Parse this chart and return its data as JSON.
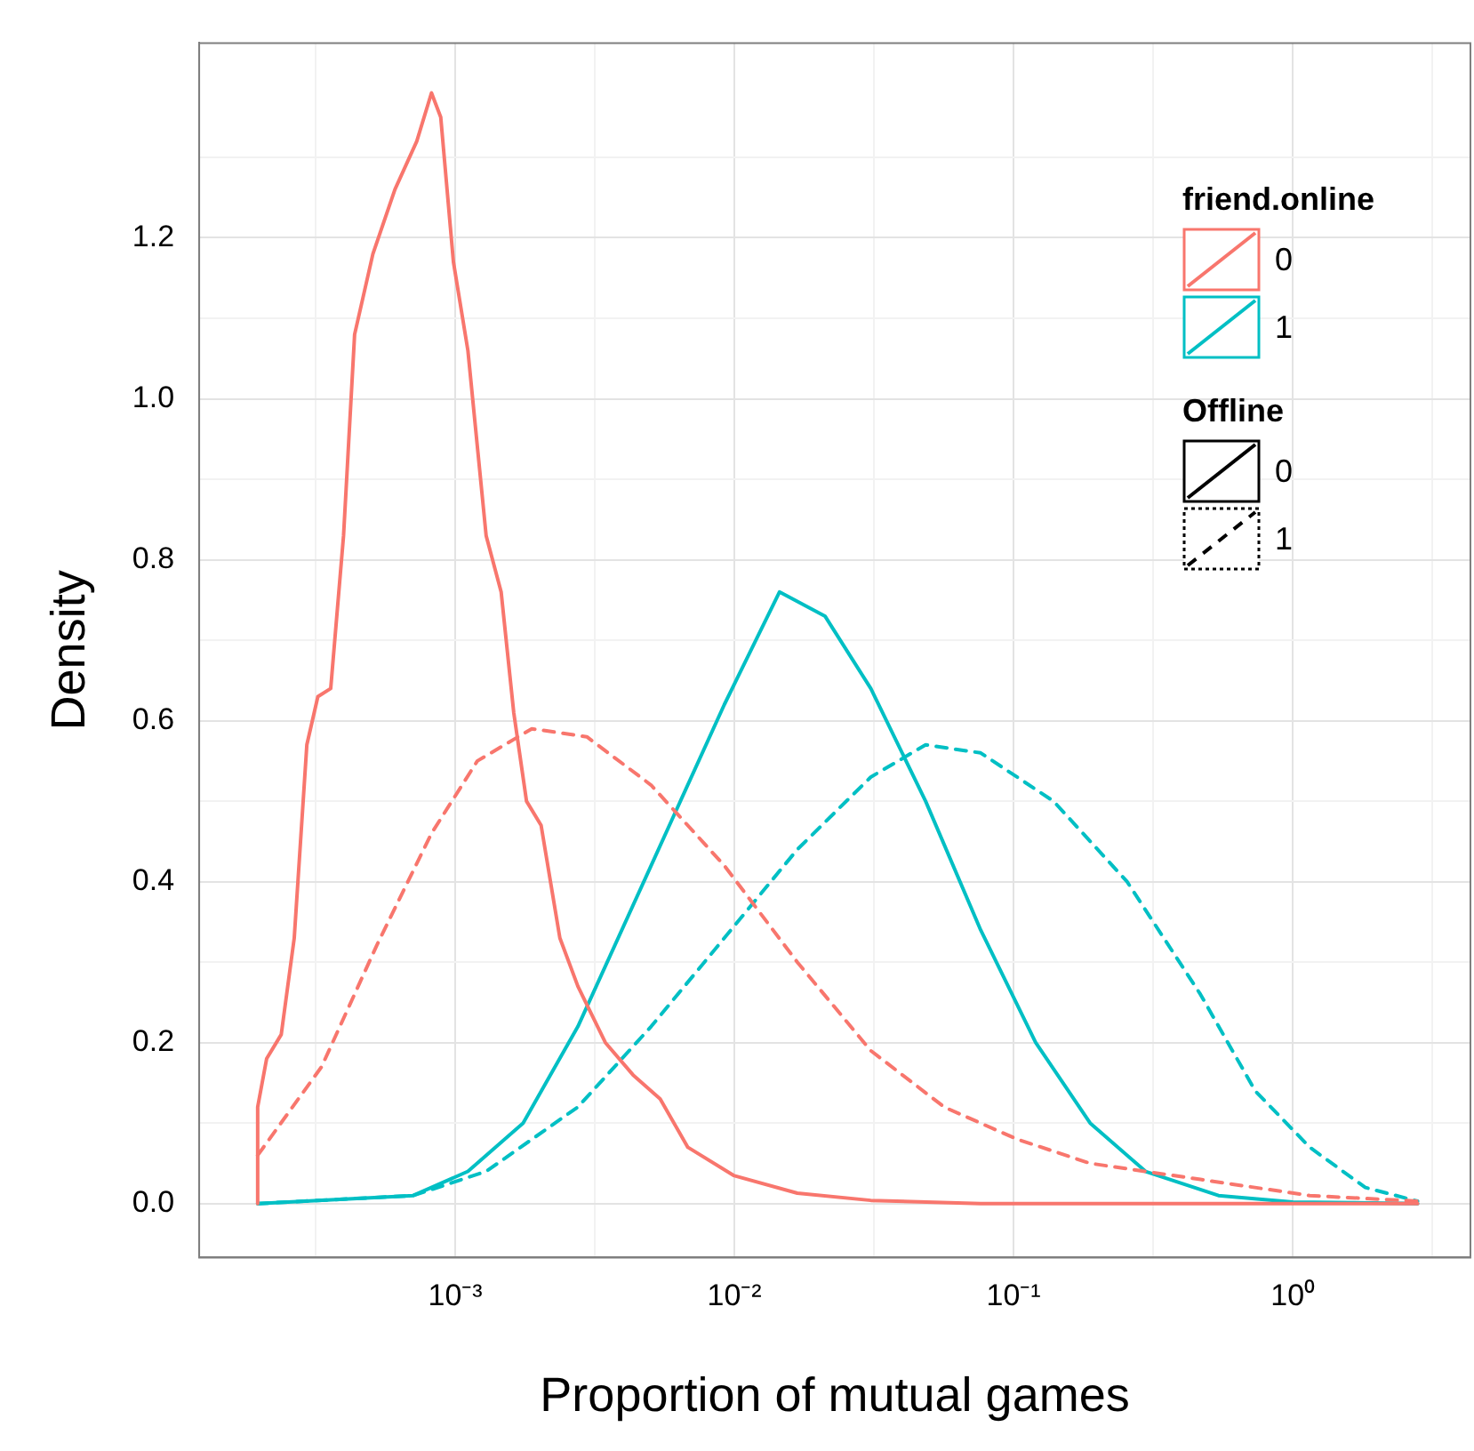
{
  "chart_data": {
    "type": "line",
    "xlabel": "Proportion of mutual games",
    "ylabel": "Density",
    "log": "x",
    "grid": true,
    "legend_title": "friend.online",
    "annotations": [
      "0",
      "1",
      "Offline",
      "0",
      "1"
    ],
    "xlim": [
      0.000121,
      4.33
    ],
    "ylim": [
      -0.067,
      1.442
    ],
    "xticks": [
      {
        "value": 0.000316,
        "label": null
      },
      {
        "value": 0.001,
        "label": "10⁻³"
      },
      {
        "value": 0.00316,
        "label": null
      },
      {
        "value": 0.01,
        "label": "10⁻²"
      },
      {
        "value": 0.0316,
        "label": null
      },
      {
        "value": 0.1,
        "label": "10⁻¹"
      },
      {
        "value": 0.316,
        "label": null
      },
      {
        "value": 1,
        "label": "10⁰"
      },
      {
        "value": 3.16,
        "label": null
      }
    ],
    "yticks": [
      {
        "value": 0,
        "label": "0.0"
      },
      {
        "value": 0.1,
        "label": null
      },
      {
        "value": 0.2,
        "label": "0.2"
      },
      {
        "value": 0.3,
        "label": null
      },
      {
        "value": 0.4,
        "label": "0.4"
      },
      {
        "value": 0.5,
        "label": null
      },
      {
        "value": 0.6,
        "label": "0.6"
      },
      {
        "value": 0.7,
        "label": null
      },
      {
        "value": 0.8,
        "label": "0.8"
      },
      {
        "value": 0.9,
        "label": null
      },
      {
        "value": 1.0,
        "label": "1.0"
      },
      {
        "value": 1.1,
        "label": null
      },
      {
        "value": 1.2,
        "label": "1.2"
      },
      {
        "value": 1.3,
        "label": null
      }
    ],
    "series": [
      {
        "color": "#f8766d",
        "line_style": "solid",
        "x": [
          0.000196,
          0.000196,
          0.000211,
          0.000238,
          0.000265,
          0.000294,
          0.000322,
          0.000358,
          0.000398,
          0.000436,
          0.000507,
          0.000608,
          0.000728,
          0.000822,
          0.000887,
          0.000985,
          0.00111,
          0.00129,
          0.00146,
          0.00162,
          0.0018,
          0.00203,
          0.00237,
          0.00275,
          0.00345,
          0.00433,
          0.00542,
          0.00681,
          0.00993,
          0.0168,
          0.0308,
          0.0762,
          2.8
        ],
        "values": [
          0,
          0.12,
          0.18,
          0.21,
          0.33,
          0.57,
          0.63,
          0.64,
          0.83,
          1.08,
          1.18,
          1.26,
          1.32,
          1.38,
          1.35,
          1.17,
          1.06,
          0.83,
          0.76,
          0.61,
          0.5,
          0.47,
          0.33,
          0.27,
          0.2,
          0.16,
          0.13,
          0.07,
          0.035,
          0.013,
          0.004,
          0,
          0
        ]
      },
      {
        "color": "#f8766d",
        "line_style": "dashed",
        "x": [
          0.000196,
          0.000332,
          0.000522,
          0.000822,
          0.0012,
          0.00188,
          0.00296,
          0.00503,
          0.0092,
          0.0168,
          0.0308,
          0.0564,
          0.103,
          0.188,
          0.467,
          1.15,
          2.8
        ],
        "values": [
          0.06,
          0.17,
          0.32,
          0.46,
          0.55,
          0.59,
          0.58,
          0.52,
          0.42,
          0.3,
          0.19,
          0.12,
          0.08,
          0.05,
          0.03,
          0.01,
          0.003
        ]
      },
      {
        "color": "#00bfc4",
        "line_style": "solid",
        "x": [
          0.000196,
          0.000707,
          0.00111,
          0.00175,
          0.00275,
          0.00503,
          0.0092,
          0.0145,
          0.0211,
          0.0308,
          0.0484,
          0.0762,
          0.12,
          0.188,
          0.297,
          0.542,
          1,
          2.8
        ],
        "values": [
          0,
          0.01,
          0.04,
          0.1,
          0.22,
          0.42,
          0.62,
          0.76,
          0.73,
          0.64,
          0.5,
          0.34,
          0.2,
          0.1,
          0.04,
          0.01,
          0.002,
          0
        ]
      },
      {
        "color": "#00bfc4",
        "line_style": "dashed",
        "x": [
          0.000196,
          0.000707,
          0.00129,
          0.00275,
          0.00503,
          0.0092,
          0.0168,
          0.0308,
          0.0484,
          0.0762,
          0.139,
          0.255,
          0.467,
          0.734,
          1.15,
          1.82,
          2.8
        ],
        "values": [
          0,
          0.01,
          0.04,
          0.12,
          0.22,
          0.33,
          0.44,
          0.53,
          0.57,
          0.56,
          0.5,
          0.4,
          0.26,
          0.14,
          0.07,
          0.02,
          0.003
        ]
      }
    ]
  }
}
